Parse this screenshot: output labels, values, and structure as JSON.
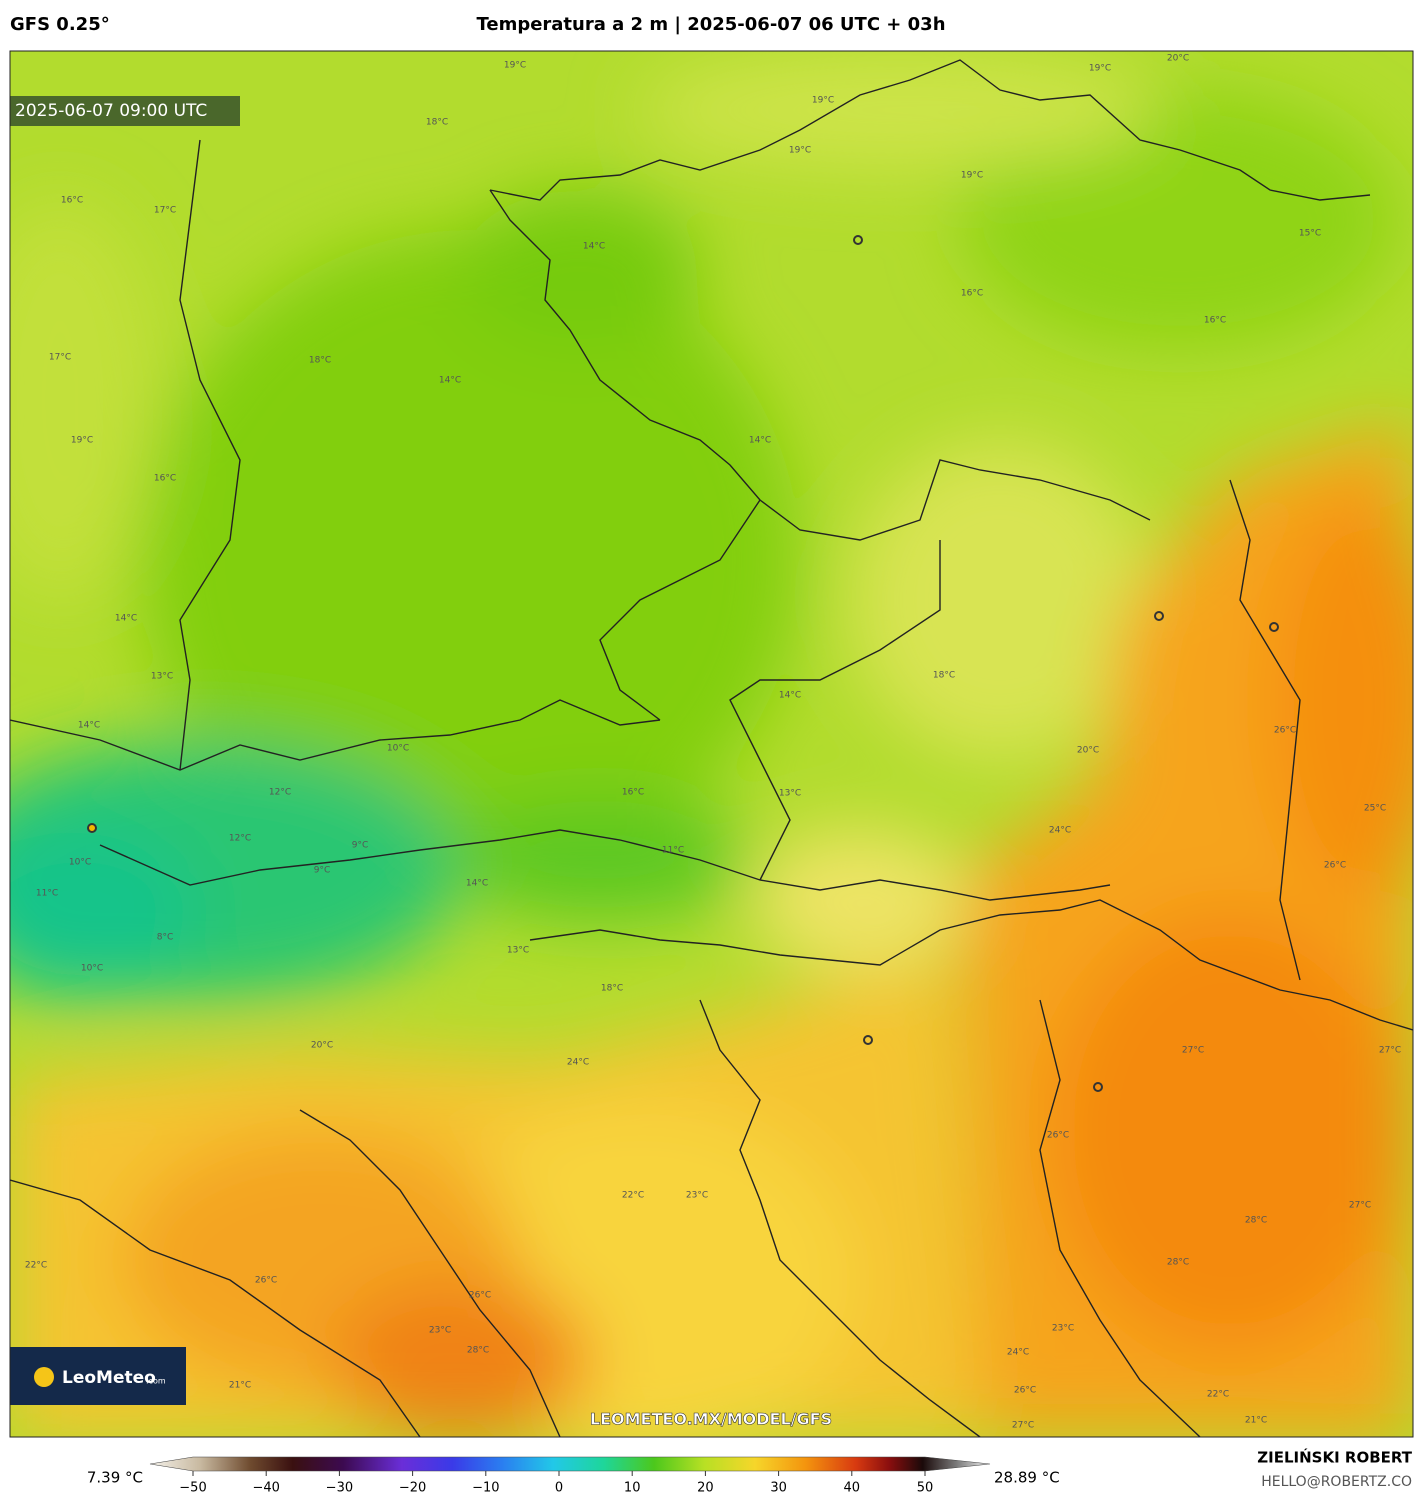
{
  "header": {
    "model": "GFS 0.25°",
    "title": "Temperatura a 2 m | 2025-06-07 06 UTC + 03h"
  },
  "map": {
    "timestamp": "2025-06-07 09:00 UTC",
    "watermark": "LEOMETEO.MX/MODEL/GFS",
    "logo": {
      "name": "LeoMeteo",
      "suffix": ".com"
    },
    "contour_labels": [
      "19°C",
      "18°C",
      "16°C",
      "17°C",
      "14°C",
      "19°C",
      "19°C",
      "19°C",
      "20°C",
      "19°C",
      "15°C",
      "16°C",
      "16°C",
      "17°C",
      "18°C",
      "14°C",
      "19°C",
      "16°C",
      "14°C",
      "14°C",
      "13°C",
      "18°C",
      "14°C",
      "14°C",
      "10°C",
      "12°C",
      "16°C",
      "13°C",
      "12°C",
      "9°C",
      "11°C",
      "9°C",
      "10°C",
      "11°C",
      "14°C",
      "8°C",
      "10°C",
      "13°C",
      "18°C",
      "20°C",
      "24°C",
      "26°C",
      "25°C",
      "26°C",
      "24°C",
      "22°C",
      "23°C",
      "27°C",
      "27°C",
      "26°C",
      "28°C",
      "22°C",
      "26°C",
      "26°C",
      "23°C",
      "28°C",
      "23°C",
      "24°C",
      "26°C",
      "22°C",
      "21°C",
      "27°C",
      "21°C",
      "28°C",
      "20°C",
      "27°C"
    ]
  },
  "colorbar": {
    "min_label": "7.39 °C",
    "max_label": "28.89 °C",
    "ticks": [
      {
        "value": -50,
        "label": "−50"
      },
      {
        "value": -40,
        "label": "−40"
      },
      {
        "value": -30,
        "label": "−30"
      },
      {
        "value": -20,
        "label": "−20"
      },
      {
        "value": -10,
        "label": "−10"
      },
      0,
      10,
      20,
      30,
      40,
      50
    ]
  },
  "footer": {
    "author": "ZIELIŃSKI ROBERT",
    "email": "HELLO@ROBERTZ.CO"
  }
}
